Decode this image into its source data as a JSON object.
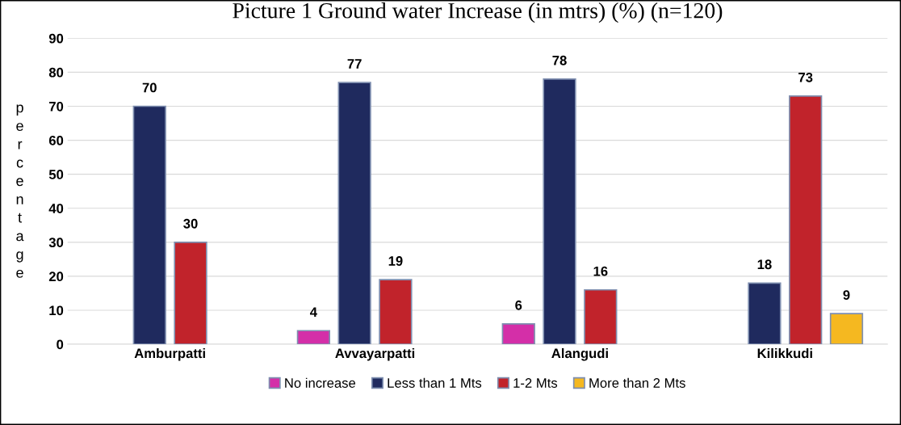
{
  "chart_data": {
    "type": "bar",
    "title": "Picture 1 Ground water Increase (in mtrs) (%) (n=120)",
    "ylabel": "percentage",
    "categories": [
      "Amburpatti",
      "Avvayarpatti",
      "Alangudi",
      "Kilikkudi"
    ],
    "series": [
      {
        "name": "No increase",
        "color": "#d42fa8",
        "values": [
          null,
          4,
          6,
          null
        ]
      },
      {
        "name": "Less than 1 Mts",
        "color": "#1f2a5e",
        "values": [
          70,
          77,
          78,
          18
        ]
      },
      {
        "name": "1-2 Mts",
        "color": "#c1232b",
        "values": [
          30,
          19,
          16,
          73
        ]
      },
      {
        "name": "More than 2 Mts",
        "color": "#f5b820",
        "values": [
          null,
          null,
          null,
          9
        ]
      }
    ],
    "ylim": [
      0,
      90
    ],
    "yticks": [
      0,
      10,
      20,
      30,
      40,
      50,
      60,
      70,
      80,
      90
    ],
    "grid": "y",
    "legend": "bottom",
    "data_labels": true
  }
}
